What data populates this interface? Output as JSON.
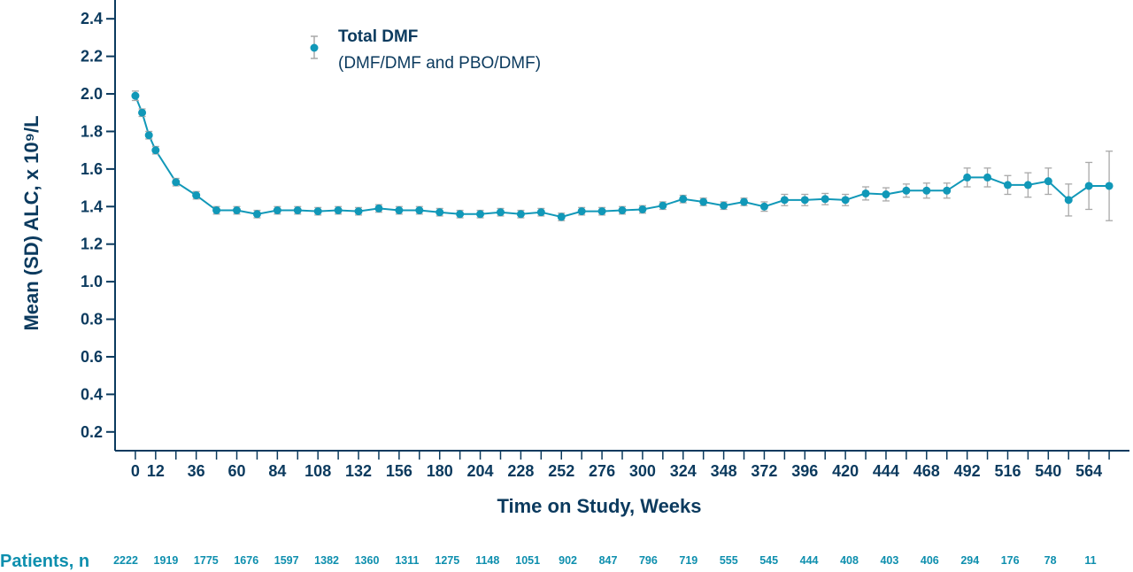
{
  "colors": {
    "series": "#1198b8",
    "axis": "#0b3a5e",
    "errorbar": "#a9a9a9",
    "patients": "#0e8fae"
  },
  "chart_data": {
    "type": "line",
    "title": "",
    "xlabel": "Time on Study, Weeks",
    "ylabel": "Mean (SD) ALC, x 10⁹/L",
    "xlim": [
      -12,
      588
    ],
    "ylim": [
      0.1,
      2.5
    ],
    "x_ticks": [
      0,
      12,
      36,
      60,
      84,
      108,
      132,
      156,
      180,
      204,
      228,
      252,
      276,
      300,
      324,
      348,
      372,
      396,
      420,
      444,
      468,
      492,
      516,
      540,
      564
    ],
    "y_ticks": [
      "0.2",
      "0.4",
      "0.6",
      "0.8",
      "1.0",
      "1.2",
      "1.4",
      "1.6",
      "1.8",
      "2.0",
      "2.2",
      "2.4"
    ],
    "grid": false,
    "legend": {
      "position": "top-left",
      "marker": "point-with-errorbar"
    },
    "series": [
      {
        "name": "Total DMF",
        "subtitle": "(DMF/DMF and PBO/DMF)",
        "x": [
          0,
          4,
          8,
          12,
          24,
          36,
          48,
          60,
          72,
          84,
          96,
          108,
          120,
          132,
          144,
          156,
          168,
          180,
          192,
          204,
          216,
          228,
          240,
          252,
          264,
          276,
          288,
          300,
          312,
          324,
          336,
          348,
          360,
          372,
          384,
          396,
          408,
          420,
          432,
          444,
          456,
          468,
          480,
          492,
          504,
          516,
          528,
          540,
          552,
          564,
          576
        ],
        "y": [
          1.99,
          1.9,
          1.78,
          1.7,
          1.53,
          1.46,
          1.38,
          1.38,
          1.36,
          1.38,
          1.38,
          1.375,
          1.38,
          1.375,
          1.39,
          1.38,
          1.38,
          1.37,
          1.36,
          1.36,
          1.37,
          1.36,
          1.37,
          1.345,
          1.375,
          1.375,
          1.38,
          1.385,
          1.405,
          1.44,
          1.425,
          1.405,
          1.425,
          1.4,
          1.435,
          1.435,
          1.44,
          1.435,
          1.47,
          1.465,
          1.485,
          1.485,
          1.485,
          1.555,
          1.555,
          1.515,
          1.515,
          1.535,
          1.435,
          1.51,
          1.51
        ],
        "sd": [
          0.025,
          0.02,
          0.02,
          0.02,
          0.02,
          0.02,
          0.02,
          0.02,
          0.02,
          0.02,
          0.02,
          0.02,
          0.02,
          0.02,
          0.02,
          0.02,
          0.02,
          0.02,
          0.02,
          0.02,
          0.02,
          0.02,
          0.02,
          0.02,
          0.02,
          0.02,
          0.02,
          0.02,
          0.02,
          0.02,
          0.02,
          0.02,
          0.02,
          0.025,
          0.03,
          0.03,
          0.03,
          0.03,
          0.035,
          0.035,
          0.035,
          0.04,
          0.04,
          0.05,
          0.05,
          0.05,
          0.065,
          0.07,
          0.085,
          0.125,
          0.185
        ]
      }
    ],
    "patients_at_risk": {
      "label": "Patients, n",
      "x": [
        0,
        12,
        24,
        36,
        48,
        60,
        72,
        84,
        96,
        108,
        120,
        132,
        144,
        156,
        168,
        180,
        192,
        204,
        216,
        228,
        240,
        252,
        264,
        276,
        288
      ],
      "counts": [
        "2222",
        "1919",
        "1775",
        "1676",
        "1597",
        "1382",
        "1360",
        "1311",
        "1275",
        "1148",
        "1051",
        "902",
        "847",
        "796",
        "719",
        "555",
        "545",
        "444",
        "408",
        "403",
        "406",
        "294",
        "176",
        "78",
        "11"
      ]
    }
  }
}
